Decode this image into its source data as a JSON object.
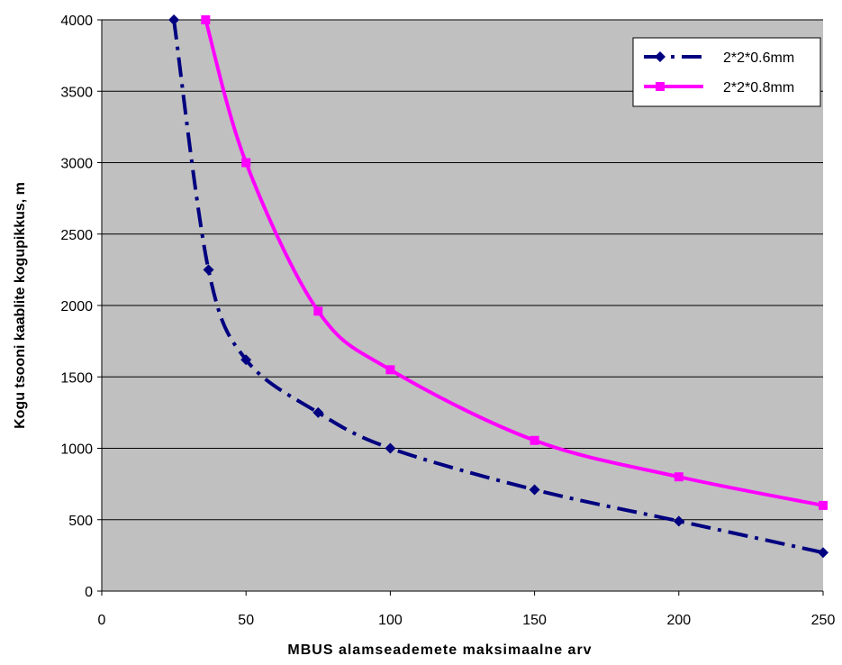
{
  "chart_data": {
    "type": "line",
    "title": "",
    "xlabel": "MBUS alamseademete maksimaalne arv",
    "ylabel": "Kogu tsooni kaablite kogupikkus, m",
    "xlim": [
      0,
      250
    ],
    "ylim": [
      0,
      4000
    ],
    "x_ticks": [
      0,
      50,
      100,
      150,
      200,
      250
    ],
    "y_ticks": [
      0,
      500,
      1000,
      1500,
      2000,
      2500,
      3000,
      3500,
      4000
    ],
    "grid": {
      "horizontal": true,
      "vertical": false
    },
    "plot_background": "#c0c0c0",
    "legend_position": "top-right",
    "series": [
      {
        "name": "2*2*0.6mm",
        "color": "#000080",
        "marker": "diamond",
        "line_style": "dash-dot",
        "points": [
          [
            25,
            4000
          ],
          [
            37,
            2250
          ],
          [
            50,
            1620
          ],
          [
            75,
            1250
          ],
          [
            100,
            1000
          ],
          [
            150,
            710
          ],
          [
            200,
            490
          ],
          [
            250,
            270
          ]
        ]
      },
      {
        "name": "2*2*0.8mm",
        "color": "#ff00ff",
        "marker": "square",
        "line_style": "solid",
        "points": [
          [
            36,
            4000
          ],
          [
            50,
            3000
          ],
          [
            75,
            1960
          ],
          [
            100,
            1550
          ],
          [
            150,
            1055
          ],
          [
            200,
            800
          ],
          [
            250,
            600
          ]
        ]
      }
    ]
  }
}
